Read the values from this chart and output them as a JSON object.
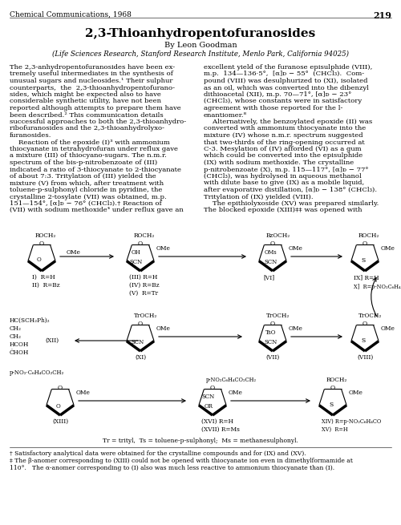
{
  "title": "2,3-Thioanhydropentofuranosides",
  "journal_header": "Chemical Communications, 1968",
  "page_number": "219",
  "author": "By Leon Goodman",
  "affiliation": "(Life Sciences Research, Stanford Research Institute, Menlo Park, California 94025)",
  "left_col_text": [
    "The 2,3-anhydropentofuranosides have been ex-",
    "tremely useful intermediates in the synthesis of",
    "unusual sugars and nucleosides.¹ Their sulphur",
    "counterparts,  the  2,3-thioanhydropentofurano-",
    "sides, which might be expected also to have",
    "considerable synthetic utility, have not been",
    "reported although attempts to prepare them have",
    "been described.² This communication details",
    "successful approaches to both the 2,3-thioanhydro-",
    "ribofuranosides and the 2,3-thioanhydrolyxo-",
    "furanosides.",
    "    Reaction of the epoxide (I)³ with ammonium",
    "thiocyanate in tetrahydrofuran under reflux gave",
    "a mixture (III) of thiocyano-sugars. The n.m.r.",
    "spectrum of the bis-p-nitrobenzoate of (III)",
    "indicated a ratio of 3-thiocyanate to 2-thiocyanate",
    "of about 7:3. Tritylation of (III) yielded the",
    "mixture (V) from which, after treatment with",
    "toluene-p-sulphonyl chloride in pyridine, the",
    "crystalline 2-tosylate (VII) was obtained, m.p.",
    "151—154°, [α]ᴅ − 76° (CHCl₃).† Reaction of",
    "(VII) with sodium methoxide⁴ under reflux gave an"
  ],
  "right_col_text": [
    "excellent yield of the furanose episulphide (VIII),",
    "m.p.  134—136·5°,  [α]ᴅ − 55°  (CHCl₃).  Com-",
    "pound (VIII) was desulphurized to (XI), isolated",
    "as an oil, which was converted into the dibenzyl",
    "dithioacetal (XII), m.p. 70—71°, [α]ᴅ − 23°",
    "(CHCl₃), whose constants were in satisfactory",
    "agreement with those reported for the l-",
    "enantiomer.⁸",
    "    Alternatively, the benzoylated epoxide (II) was",
    "converted with ammonium thiocyanate into the",
    "mixture (IV) whose n.m.r. spectrum suggested",
    "that two-thirds of the ring-opening occurred at",
    "C-3. Mesylation of (IV) afforded (VI) as a gum",
    "which could be converted into the episulphide",
    "(IX) with sodium methoxide. The crystalline",
    "p-nitrobenzoate (X), m.p. 115—117°, [α]ᴅ − 77°",
    "(CHCl₃), was hydrolysed in aqueous methanol",
    "with dilute base to give (IX) as a mobile liquid,",
    "after evaporative distillation, [α]ᴅ − 138° (CHCl₃).",
    "Tritylation of (IX) yielded (VIII).",
    "    The epithiolyxoside (XV) was prepared similarly.",
    "The blocked epoxide (XIII)‡‡ was opened with"
  ],
  "tr_note": "Tr = trityl,  Ts = toluene-p-sulphonyl;  Ms = methanesulphonyl.",
  "footnote1": "† Satisfactory analytical data were obtained for the crystalline compounds and for (IX) and (XV).",
  "footnote2": "‡ The β-anomer corresponding to (XIII) could not be opened with thiocyanate ion even in dimethylformamide at",
  "footnote3": "110°.   The α-anomer corresponding to (I) also was much less reactive to ammonium thiocyanate than (I).",
  "bg_color": "#ffffff",
  "text_color": "#000000"
}
